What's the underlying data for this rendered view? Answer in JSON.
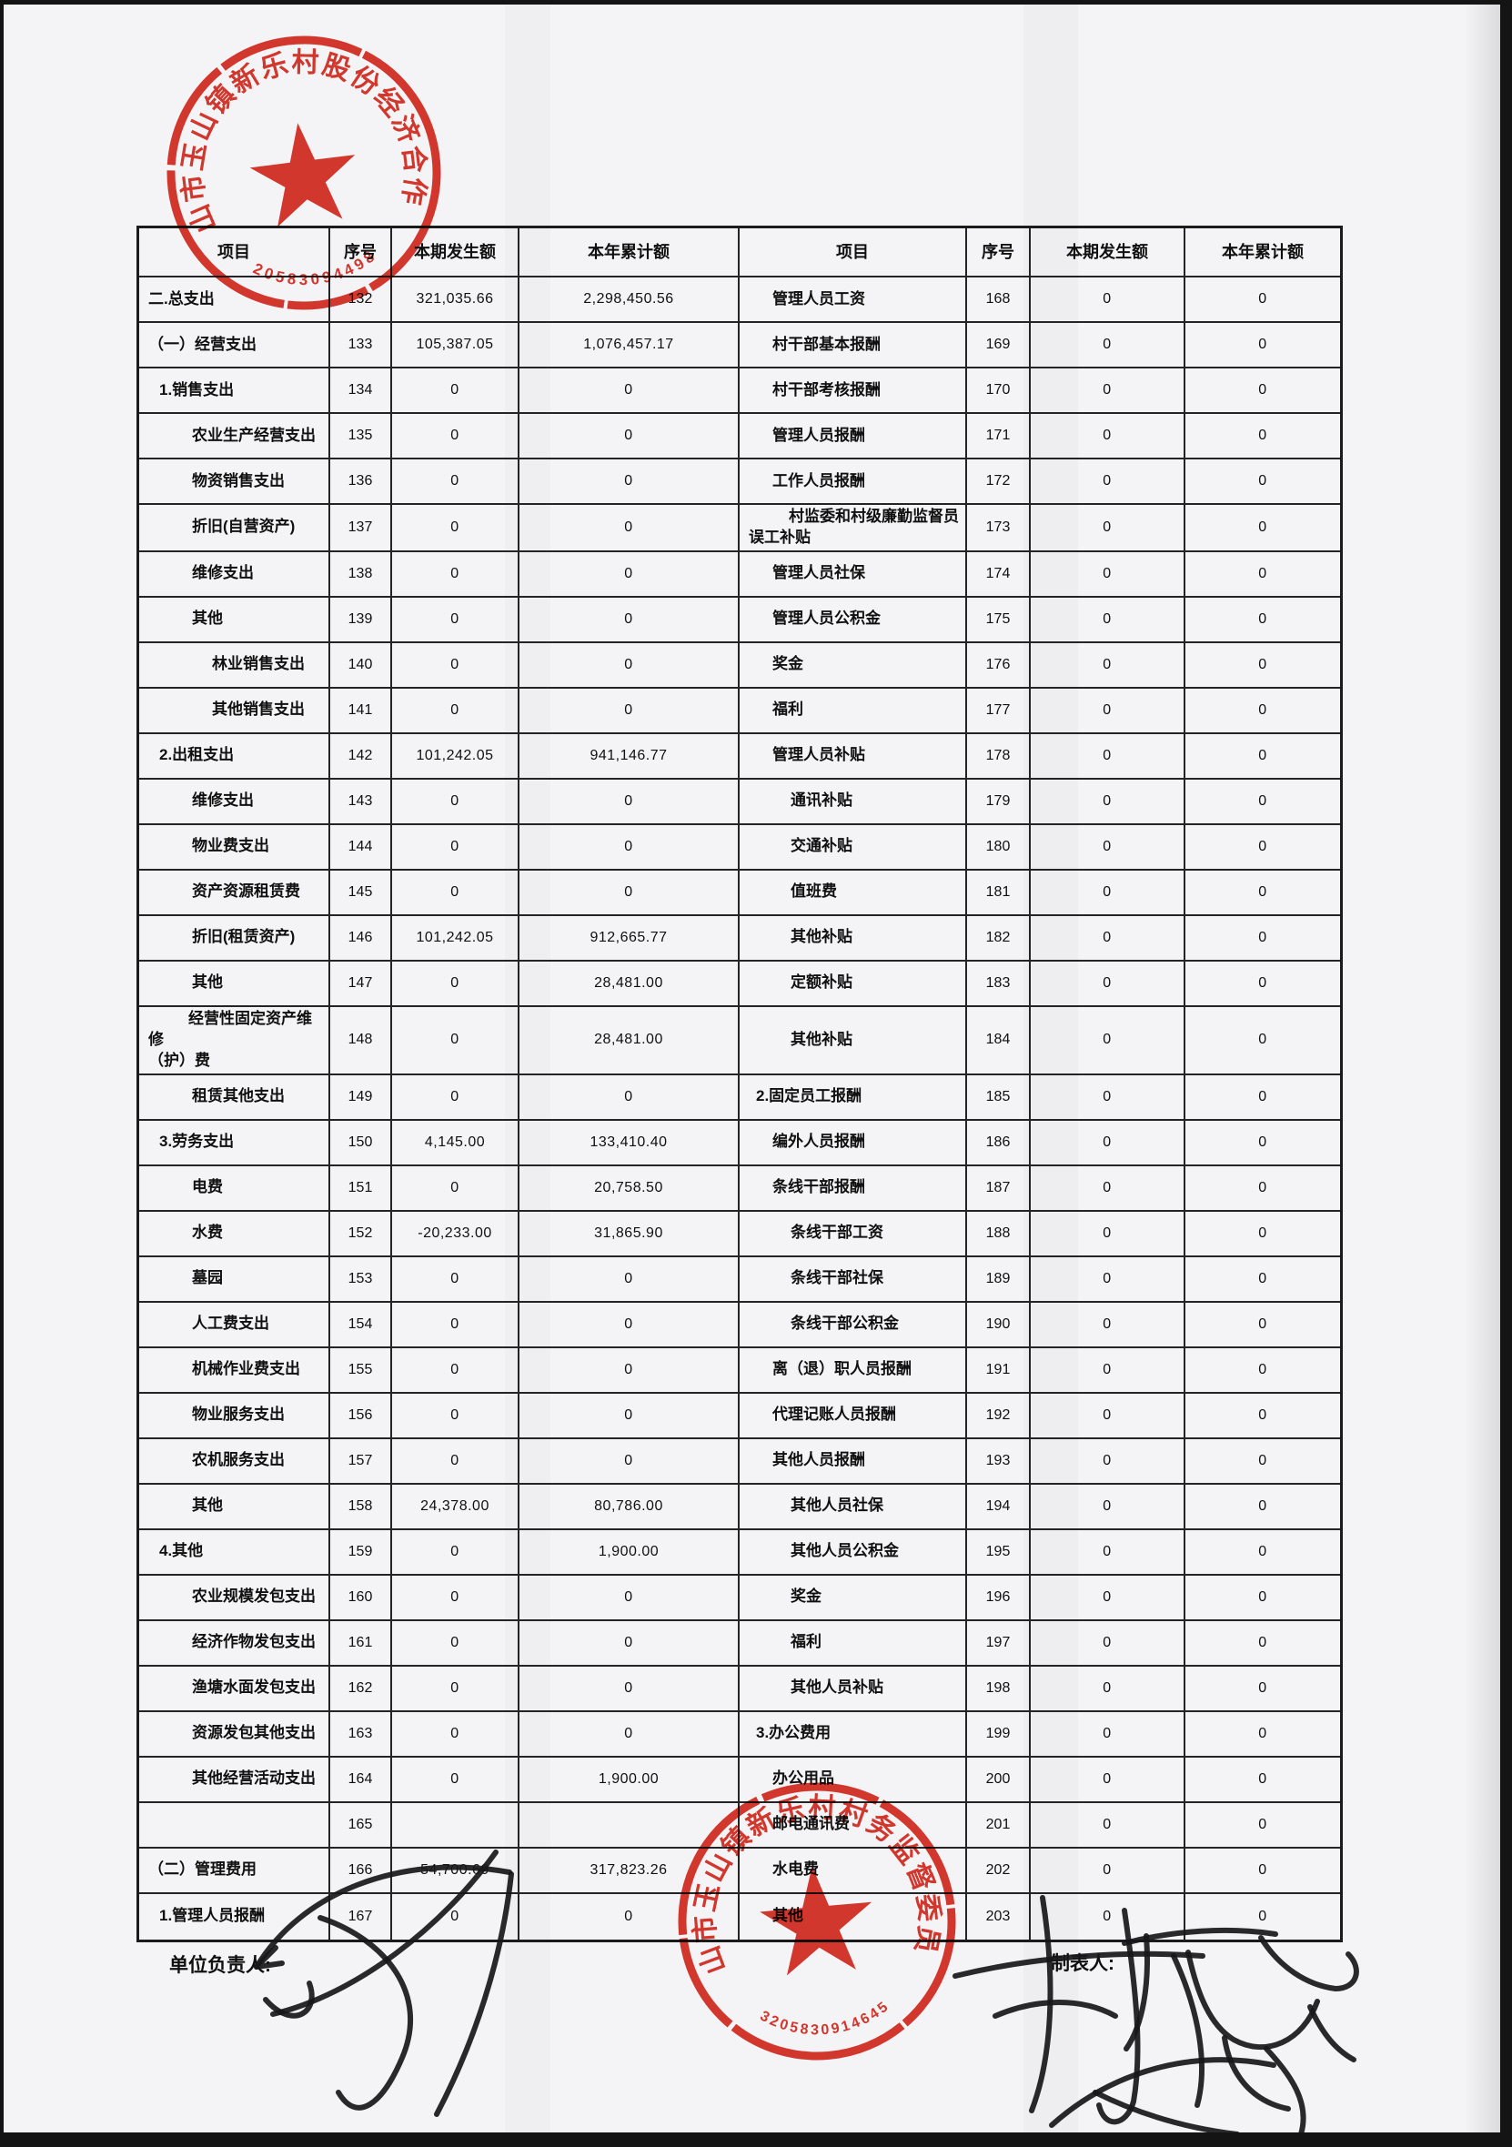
{
  "footer": {
    "unit_leader_label": "单位负责人:",
    "preparer_label": "制表人:"
  },
  "stamps": {
    "top": {
      "org_name": "昆山市玉山镇新乐村股份经济合作社",
      "number": "3205830944980",
      "color": "#d92a1e"
    },
    "bottom": {
      "org_name": "昆山市玉山镇新乐村村务监督委员会",
      "number": "3205830914645",
      "color": "#d92a1e"
    }
  },
  "table": {
    "headers": [
      "项目",
      "序号",
      "本期发生额",
      "本年累计额",
      "项目",
      "序号",
      "本期发生额",
      "本年累计额"
    ],
    "rows": [
      [
        "二.总支出",
        0,
        "132",
        "321,035.66",
        "2,298,450.56",
        "管理人员工资",
        2,
        "168",
        "0",
        "0"
      ],
      [
        "（一）经营支出",
        0,
        "133",
        "105,387.05",
        "1,076,457.17",
        "村干部基本报酬",
        2,
        "169",
        "0",
        "0"
      ],
      [
        "1.销售支出",
        1,
        "134",
        "0",
        "0",
        "村干部考核报酬",
        2,
        "170",
        "0",
        "0"
      ],
      [
        "农业生产经营支出",
        2,
        "135",
        "0",
        "0",
        "管理人员报酬",
        2,
        "171",
        "0",
        "0"
      ],
      [
        "物资销售支出",
        2,
        "136",
        "0",
        "0",
        "工作人员报酬",
        2,
        "172",
        "0",
        "0"
      ],
      [
        "折旧(自营资产)",
        2,
        "137",
        "0",
        "0",
        "村监委和村级廉勤监督员\n误工补贴",
        2,
        "173",
        "0",
        "0"
      ],
      [
        "维修支出",
        2,
        "138",
        "0",
        "0",
        "管理人员社保",
        2,
        "174",
        "0",
        "0"
      ],
      [
        "其他",
        2,
        "139",
        "0",
        "0",
        "管理人员公积金",
        2,
        "175",
        "0",
        "0"
      ],
      [
        "林业销售支出",
        3,
        "140",
        "0",
        "0",
        "奖金",
        2,
        "176",
        "0",
        "0"
      ],
      [
        "其他销售支出",
        3,
        "141",
        "0",
        "0",
        "福利",
        2,
        "177",
        "0",
        "0"
      ],
      [
        "2.出租支出",
        1,
        "142",
        "101,242.05",
        "941,146.77",
        "管理人员补贴",
        2,
        "178",
        "0",
        "0"
      ],
      [
        "维修支出",
        2,
        "143",
        "0",
        "0",
        "通讯补贴",
        3,
        "179",
        "0",
        "0"
      ],
      [
        "物业费支出",
        2,
        "144",
        "0",
        "0",
        "交通补贴",
        3,
        "180",
        "0",
        "0"
      ],
      [
        "资产资源租赁费",
        2,
        "145",
        "0",
        "0",
        "值班费",
        3,
        "181",
        "0",
        "0"
      ],
      [
        "折旧(租赁资产)",
        2,
        "146",
        "101,242.05",
        "912,665.77",
        "其他补贴",
        3,
        "182",
        "0",
        "0"
      ],
      [
        "其他",
        2,
        "147",
        "0",
        "28,481.00",
        "定额补贴",
        3,
        "183",
        "0",
        "0"
      ],
      [
        "经营性固定资产维修\n（护）费",
        2,
        "148",
        "0",
        "28,481.00",
        "其他补贴",
        3,
        "184",
        "0",
        "0"
      ],
      [
        "租赁其他支出",
        2,
        "149",
        "0",
        "0",
        "2.固定员工报酬",
        1,
        "185",
        "0",
        "0"
      ],
      [
        "3.劳务支出",
        1,
        "150",
        "4,145.00",
        "133,410.40",
        "编外人员报酬",
        2,
        "186",
        "0",
        "0"
      ],
      [
        "电费",
        2,
        "151",
        "0",
        "20,758.50",
        "条线干部报酬",
        2,
        "187",
        "0",
        "0"
      ],
      [
        "水费",
        2,
        "152",
        "-20,233.00",
        "31,865.90",
        "条线干部工资",
        3,
        "188",
        "0",
        "0"
      ],
      [
        "墓园",
        2,
        "153",
        "0",
        "0",
        "条线干部社保",
        3,
        "189",
        "0",
        "0"
      ],
      [
        "人工费支出",
        2,
        "154",
        "0",
        "0",
        "条线干部公积金",
        3,
        "190",
        "0",
        "0"
      ],
      [
        "机械作业费支出",
        2,
        "155",
        "0",
        "0",
        "离（退）职人员报酬",
        2,
        "191",
        "0",
        "0"
      ],
      [
        "物业服务支出",
        2,
        "156",
        "0",
        "0",
        "代理记账人员报酬",
        2,
        "192",
        "0",
        "0"
      ],
      [
        "农机服务支出",
        2,
        "157",
        "0",
        "0",
        "其他人员报酬",
        2,
        "193",
        "0",
        "0"
      ],
      [
        "其他",
        2,
        "158",
        "24,378.00",
        "80,786.00",
        "其他人员社保",
        3,
        "194",
        "0",
        "0"
      ],
      [
        "4.其他",
        1,
        "159",
        "0",
        "1,900.00",
        "其他人员公积金",
        3,
        "195",
        "0",
        "0"
      ],
      [
        "农业规模发包支出",
        2,
        "160",
        "0",
        "0",
        "奖金",
        3,
        "196",
        "0",
        "0"
      ],
      [
        "经济作物发包支出",
        2,
        "161",
        "0",
        "0",
        "福利",
        3,
        "197",
        "0",
        "0"
      ],
      [
        "渔塘水面发包支出",
        2,
        "162",
        "0",
        "0",
        "其他人员补贴",
        3,
        "198",
        "0",
        "0"
      ],
      [
        "资源发包其他支出",
        2,
        "163",
        "0",
        "0",
        "3.办公费用",
        1,
        "199",
        "0",
        "0"
      ],
      [
        "其他经营活动支出",
        2,
        "164",
        "0",
        "1,900.00",
        "办公用品",
        2,
        "200",
        "0",
        "0"
      ],
      [
        "",
        0,
        "165",
        "",
        "",
        "邮电通讯费",
        2,
        "201",
        "0",
        "0"
      ],
      [
        "（二）管理费用",
        0,
        "166",
        "54,700.69",
        "317,823.26",
        "水电费",
        2,
        "202",
        "0",
        "0"
      ],
      [
        "1.管理人员报酬",
        1,
        "167",
        "0",
        "0",
        "其他",
        2,
        "203",
        "0",
        "0"
      ]
    ]
  }
}
